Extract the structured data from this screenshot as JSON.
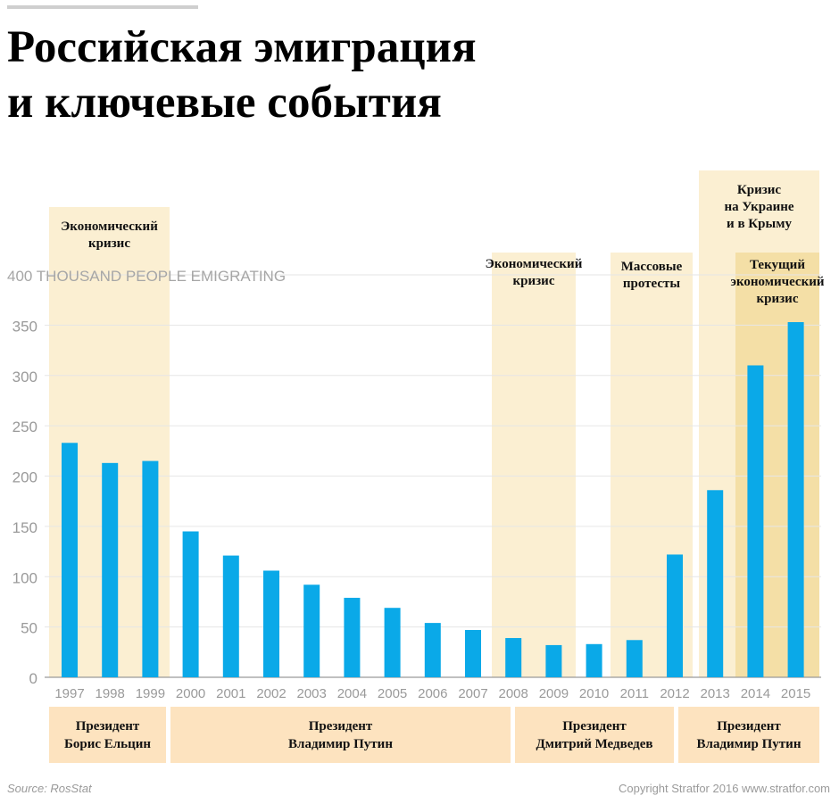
{
  "title_lines": [
    "Российская эмиграция",
    "и ключевые события"
  ],
  "chart_data": {
    "type": "bar",
    "unit_label": "THOUSAND PEOPLE EMIGRATING",
    "categories": [
      "1997",
      "1998",
      "1999",
      "2000",
      "2001",
      "2002",
      "2003",
      "2004",
      "2005",
      "2006",
      "2007",
      "2008",
      "2009",
      "2010",
      "2011",
      "2012",
      "2013",
      "2014",
      "2015"
    ],
    "values": [
      233,
      213,
      215,
      145,
      121,
      106,
      92,
      79,
      69,
      54,
      47,
      39,
      32,
      33,
      37,
      122,
      186,
      310,
      353
    ],
    "ylim": [
      0,
      400
    ],
    "yticks": [
      0,
      50,
      100,
      150,
      200,
      250,
      300,
      350,
      400
    ],
    "bar_color": "#0aa9e8",
    "highlight_periods": [
      {
        "lines": [
          "Экономический",
          "кризис"
        ],
        "start": "1997",
        "end": "1999",
        "color": "#fbefd2"
      },
      {
        "lines": [
          "Экономический",
          "кризис"
        ],
        "start": "2008",
        "end": "2009",
        "color": "#fbefd2"
      },
      {
        "lines": [
          "Массовые",
          "протесты"
        ],
        "start": "2011",
        "end": "2012",
        "color": "#fbefd2"
      },
      {
        "lines": [
          "Кризис",
          "на Украине",
          "и в Крыму"
        ],
        "start": "2013",
        "end": "2015",
        "color": "#fbefd2"
      },
      {
        "lines": [
          "Текущий",
          "экономический",
          "кризис"
        ],
        "start": "2014",
        "end": "2015",
        "color": "#f4dfa6"
      }
    ],
    "presidencies": [
      {
        "lines": [
          "Президент",
          "Борис Ельцин"
        ],
        "start": "1997",
        "end": "1999"
      },
      {
        "lines": [
          "Президент",
          "Владимир Путин"
        ],
        "start": "2000",
        "end": "2008"
      },
      {
        "lines": [
          "Президент",
          "Дмитрий Медведев"
        ],
        "start": "2008",
        "end": "2012"
      },
      {
        "lines": [
          "Президент",
          "Владимир Путин"
        ],
        "start": "2012",
        "end": "2015"
      }
    ],
    "presidency_color": "#fde3bf"
  },
  "source": "Source: RosStat",
  "copyright": "Copyright Stratfor 2016   www.stratfor.com"
}
